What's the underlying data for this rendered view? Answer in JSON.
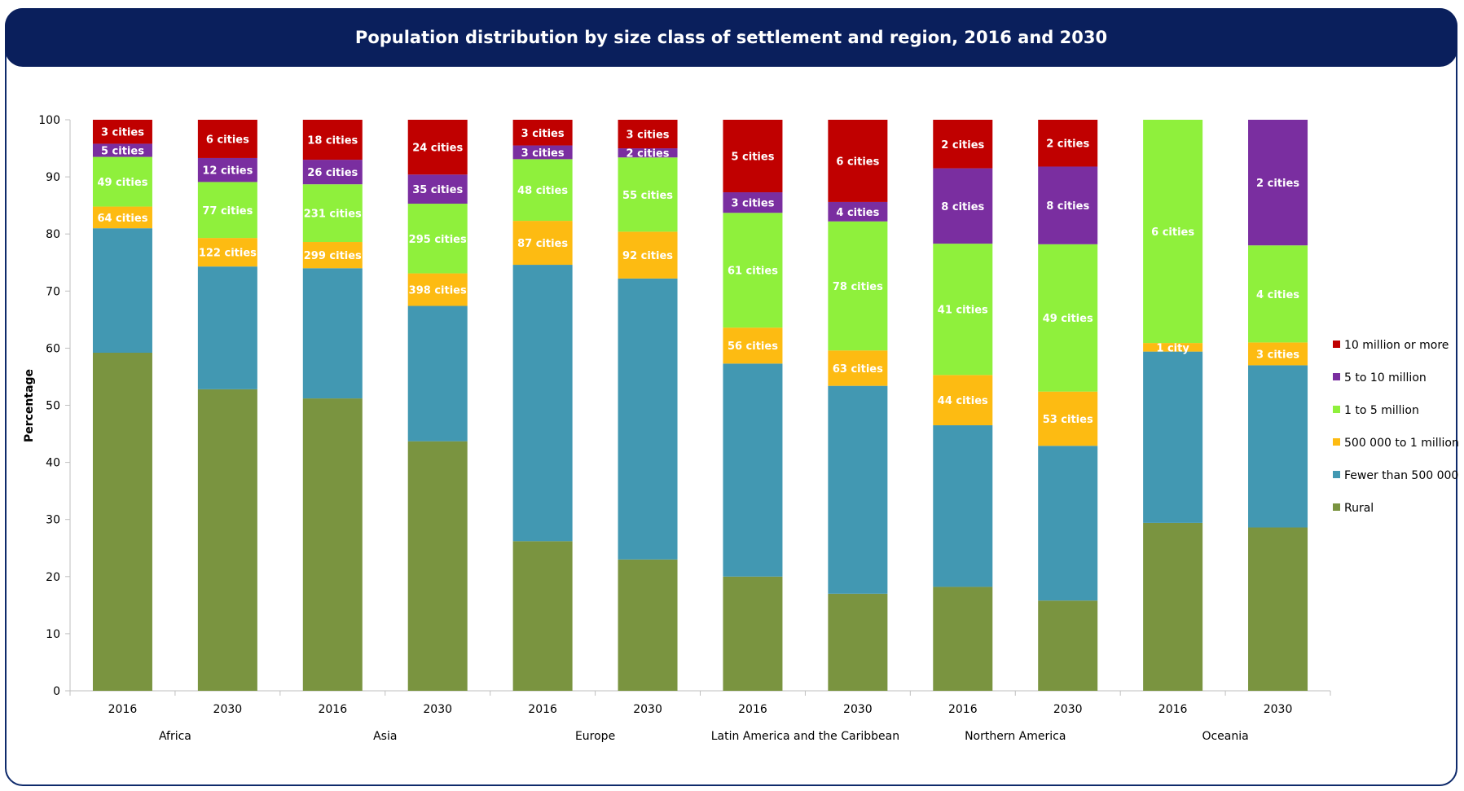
{
  "page": {
    "title": "Population distribution by size class of settlement and region, 2016 and 2030"
  },
  "chart_data": {
    "type": "bar",
    "stacked": true,
    "title": "Population distribution by size class of settlement and region, 2016 and 2030",
    "ylabel": "Percentage",
    "xlabel": "",
    "ylim": [
      0,
      100
    ],
    "yticks": [
      0,
      10,
      20,
      30,
      40,
      50,
      60,
      70,
      80,
      90,
      100
    ],
    "grid": false,
    "legend_position": "right",
    "categories": [
      "2016",
      "2030",
      "2016",
      "2030",
      "2016",
      "2030",
      "2016",
      "2030",
      "2016",
      "2030",
      "2016",
      "2030"
    ],
    "groups": [
      {
        "name": "Africa",
        "span": [
          0,
          1
        ]
      },
      {
        "name": "Asia",
        "span": [
          2,
          3
        ]
      },
      {
        "name": "Europe",
        "span": [
          4,
          5
        ]
      },
      {
        "name": "Latin America and the Caribbean",
        "span": [
          6,
          7
        ]
      },
      {
        "name": "Northern America",
        "span": [
          8,
          9
        ]
      },
      {
        "name": "Oceania",
        "span": [
          10,
          11
        ]
      }
    ],
    "series": [
      {
        "name": "Rural",
        "color": "#7a9440",
        "values": [
          59.2,
          52.8,
          51.2,
          43.7,
          26.2,
          23.0,
          20.0,
          17.0,
          18.2,
          15.8,
          29.4,
          28.6
        ],
        "labels": [
          "",
          "",
          "",
          "",
          "",
          "",
          "",
          "",
          "",
          "",
          "",
          ""
        ]
      },
      {
        "name": "Fewer than 500 000",
        "color": "#4298b2",
        "values": [
          21.8,
          21.5,
          22.8,
          23.7,
          48.4,
          49.2,
          37.3,
          36.4,
          28.3,
          27.1,
          30.0,
          28.4
        ],
        "labels": [
          "",
          "",
          "",
          "",
          "",
          "",
          "",
          "",
          "",
          "",
          "",
          ""
        ]
      },
      {
        "name": "500 000 to 1 million",
        "color": "#fdbb12",
        "values": [
          3.8,
          5.0,
          4.6,
          5.7,
          7.7,
          8.2,
          6.3,
          6.2,
          8.8,
          9.5,
          1.5,
          4.0
        ],
        "labels": [
          "64 cities",
          "122 cities",
          "299 cities",
          "398 cities",
          "87 cities",
          "92 cities",
          "56 cities",
          "63 cities",
          "44 cities",
          "53 cities",
          "1 city",
          "3 cities"
        ]
      },
      {
        "name": "1 to 5 million",
        "color": "#8ff03c",
        "values": [
          8.7,
          9.8,
          10.1,
          12.2,
          10.8,
          13.0,
          20.1,
          22.6,
          23.0,
          25.8,
          39.1,
          17.0
        ],
        "labels": [
          "49 cities",
          "77 cities",
          "231 cities",
          "295 cities",
          "48 cities",
          "55 cities",
          "61 cities",
          "78 cities",
          "41 cities",
          "49 cities",
          "6 cities",
          "4 cities"
        ]
      },
      {
        "name": "5 to 10 million",
        "color": "#7a2ea0",
        "values": [
          2.3,
          4.2,
          4.3,
          5.1,
          2.4,
          1.6,
          3.6,
          3.4,
          13.2,
          13.6,
          0,
          22.0
        ],
        "labels": [
          "5 cities",
          "12 cities",
          "26 cities",
          "35 cities",
          "3 cities",
          "2 cities",
          "3 cities",
          "4 cities",
          "8 cities",
          "8 cities",
          "",
          "2 cities"
        ]
      },
      {
        "name": "10 million or more",
        "color": "#c00000",
        "values": [
          4.2,
          6.7,
          7.0,
          9.6,
          4.5,
          5.0,
          12.7,
          14.4,
          8.5,
          8.2,
          0,
          0
        ],
        "labels": [
          "3 cities",
          "6 cities",
          "18 cities",
          "24 cities",
          "3 cities",
          "3 cities",
          "5 cities",
          "6 cities",
          "2 cities",
          "2 cities",
          "",
          ""
        ]
      }
    ],
    "legend_order": [
      "10 million or more",
      "5 to 10 million",
      "1 to 5 million",
      "500 000 to 1 million",
      "Fewer than 500 000",
      "Rural"
    ]
  }
}
